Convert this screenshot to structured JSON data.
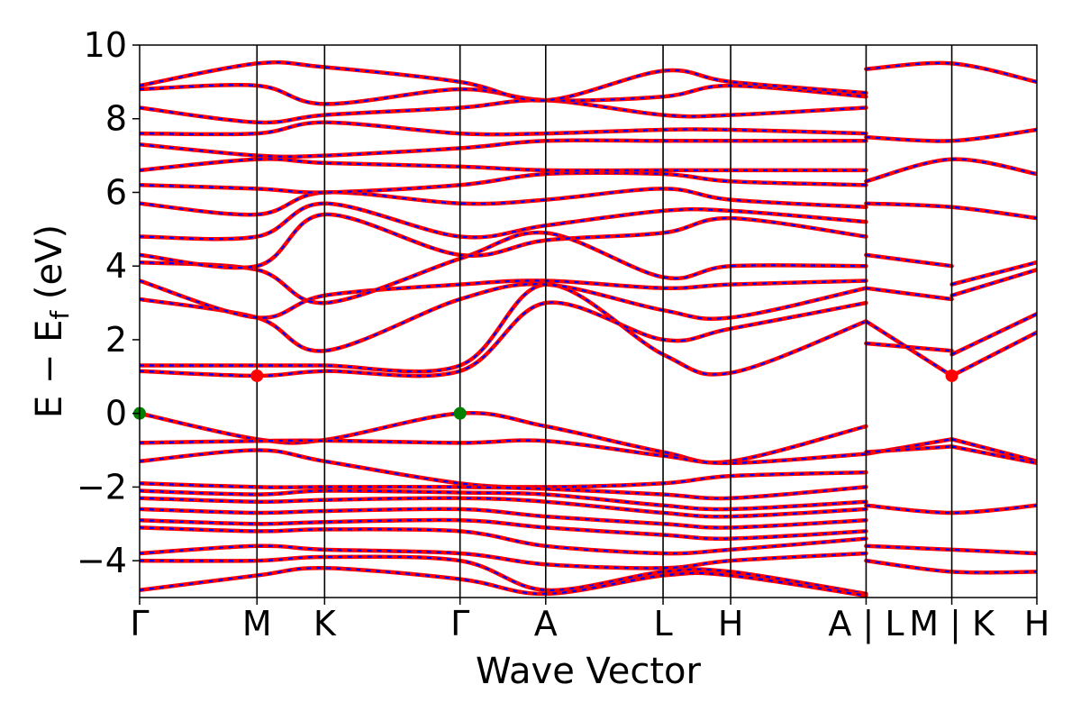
{
  "chart_data": {
    "type": "line",
    "xlabel": "Wave Vector",
    "ylabel_main": "E − E",
    "ylabel_sub": "f",
    "ylabel_unit": " (eV)",
    "ylim": [
      -5,
      10
    ],
    "yticks": [
      -4,
      -2,
      0,
      2,
      4,
      6,
      8,
      10
    ],
    "ytick_labels": [
      "−4",
      "−2",
      "0",
      "2",
      "4",
      "6",
      "8",
      "10"
    ],
    "kpath_labels": [
      "Γ",
      "M",
      "K",
      "Γ",
      "A",
      "L",
      "H",
      "A | L",
      "M | K",
      "H"
    ],
    "kpath_positions": [
      0,
      0.578,
      0.911,
      1.578,
      2.0,
      2.578,
      2.911,
      3.578,
      4.0,
      4.419
    ],
    "path_breaks": [
      3.578,
      4.0
    ],
    "grid": false,
    "band_colors": {
      "solid": "#ff0000",
      "dash": "#0000ff"
    },
    "markers": [
      {
        "name": "VBM",
        "x": 0,
        "y": 0,
        "color": "#008000"
      },
      {
        "name": "VBM",
        "x": 1.578,
        "y": 0,
        "color": "#008000"
      },
      {
        "name": "CBM",
        "x": 0.578,
        "y": 1.02,
        "color": "#ff0000"
      },
      {
        "name": "CBM",
        "x": 4.0,
        "y": 1.02,
        "color": "#ff0000"
      }
    ],
    "series": [
      {
        "x": [
          0,
          0.578,
          0.911,
          1.578,
          2.0,
          2.578,
          2.911,
          3.578
        ],
        "values": [
          0.0,
          -0.7,
          -0.72,
          0.0,
          -0.35,
          -1.05,
          -1.3,
          -0.35
        ]
      },
      {
        "x": [
          3.578,
          4.0
        ],
        "values": [
          -1.1,
          -0.7
        ]
      },
      {
        "x": [
          4.0,
          4.419
        ],
        "values": [
          -0.7,
          -1.3
        ]
      },
      {
        "x": [
          0,
          0.578,
          0.911,
          1.578,
          2.0,
          2.578,
          2.911,
          3.578
        ],
        "values": [
          -0.8,
          -0.75,
          -0.74,
          -0.8,
          -0.75,
          -1.15,
          -1.35,
          -1.1
        ]
      },
      {
        "x": [
          3.578,
          4.0
        ],
        "values": [
          -1.05,
          -0.9
        ]
      },
      {
        "x": [
          4.0,
          4.419
        ],
        "values": [
          -0.9,
          -1.35
        ]
      },
      {
        "x": [
          0,
          0.578,
          0.911,
          1.578,
          2.0,
          2.578,
          2.911,
          3.578
        ],
        "values": [
          -1.3,
          -1.0,
          -1.3,
          -1.9,
          -2.0,
          -1.9,
          -1.7,
          -1.6
        ]
      },
      {
        "x": [
          0,
          0.578,
          0.911,
          1.578,
          2.0,
          2.578,
          2.911,
          3.578
        ],
        "values": [
          -1.9,
          -2.0,
          -2.0,
          -2.0,
          -2.05,
          -2.2,
          -2.3,
          -2.0
        ]
      },
      {
        "x": [
          0,
          0.578,
          0.911,
          1.578,
          2.0,
          2.578,
          2.911,
          3.578
        ],
        "values": [
          -2.1,
          -2.2,
          -2.1,
          -2.15,
          -2.2,
          -2.5,
          -2.6,
          -2.4
        ]
      },
      {
        "x": [
          0,
          0.578,
          0.911,
          1.578,
          2.0,
          2.578,
          2.911,
          3.578
        ],
        "values": [
          -2.3,
          -2.4,
          -2.35,
          -2.3,
          -2.4,
          -2.7,
          -2.8,
          -2.6
        ]
      },
      {
        "x": [
          0,
          0.578,
          0.911,
          1.578,
          2.0,
          2.578,
          2.911,
          3.578
        ],
        "values": [
          -2.6,
          -2.7,
          -2.65,
          -2.6,
          -2.8,
          -3.0,
          -3.1,
          -2.9
        ]
      },
      {
        "x": [
          0,
          0.578,
          0.911,
          1.578,
          2.0,
          2.578,
          2.911,
          3.578
        ],
        "values": [
          -2.9,
          -3.0,
          -2.95,
          -2.9,
          -3.1,
          -3.3,
          -3.4,
          -3.2
        ]
      },
      {
        "x": [
          0,
          0.578,
          0.911,
          1.578,
          2.0,
          2.578,
          2.911,
          3.578
        ],
        "values": [
          -3.1,
          -3.2,
          -3.15,
          -3.2,
          -3.6,
          -3.8,
          -3.7,
          -3.4
        ]
      },
      {
        "x": [
          0,
          0.578,
          0.911,
          1.578,
          2.0,
          2.578,
          2.911,
          3.578
        ],
        "values": [
          -3.8,
          -3.6,
          -3.7,
          -3.8,
          -4.1,
          -4.2,
          -4.0,
          -3.8
        ]
      },
      {
        "x": [
          0,
          0.578,
          0.911,
          1.578,
          2.0,
          2.578,
          2.911,
          3.578
        ],
        "values": [
          -4.0,
          -4.0,
          -3.9,
          -4.0,
          -4.8,
          -4.3,
          -4.3,
          -4.9
        ]
      },
      {
        "x": [
          0,
          0.578,
          0.911,
          1.578,
          2.0,
          2.578,
          2.911,
          3.578
        ],
        "values": [
          -4.8,
          -4.4,
          -4.2,
          -4.5,
          -4.9,
          -4.4,
          -4.4,
          -4.95
        ]
      },
      {
        "x": [
          3.578,
          4.0,
          4.419
        ],
        "values": [
          -2.5,
          -2.7,
          -2.5
        ]
      },
      {
        "x": [
          3.578,
          4.0,
          4.419
        ],
        "values": [
          -3.6,
          -3.7,
          -3.8
        ]
      },
      {
        "x": [
          3.578,
          4.0,
          4.419
        ],
        "values": [
          -4.0,
          -4.3,
          -4.3
        ]
      },
      {
        "x": [
          0,
          0.578,
          0.911,
          1.578,
          2.0,
          2.578,
          2.911,
          3.578
        ],
        "values": [
          1.3,
          1.3,
          1.3,
          1.3,
          3.5,
          1.6,
          1.1,
          2.5
        ]
      },
      {
        "x": [
          0,
          0.578,
          0.911,
          1.578,
          2.0,
          2.578,
          2.911,
          3.578
        ],
        "values": [
          1.15,
          1.02,
          1.15,
          1.15,
          3.0,
          2.0,
          2.3,
          3.0
        ]
      },
      {
        "x": [
          3.578,
          4.0
        ],
        "values": [
          2.5,
          1.02
        ]
      },
      {
        "x": [
          4.0,
          4.419
        ],
        "values": [
          1.02,
          2.2
        ]
      },
      {
        "x": [
          3.578,
          4.0
        ],
        "values": [
          1.9,
          1.7
        ]
      },
      {
        "x": [
          4.0,
          4.419
        ],
        "values": [
          1.6,
          2.7
        ]
      },
      {
        "x": [
          0,
          0.578,
          0.911,
          1.578,
          2.0,
          2.578,
          2.911,
          3.578
        ],
        "values": [
          3.1,
          2.6,
          1.7,
          3.1,
          3.5,
          2.8,
          2.6,
          3.4
        ]
      },
      {
        "x": [
          0,
          0.578,
          0.911,
          1.578,
          2.0,
          2.578,
          2.911,
          3.578
        ],
        "values": [
          3.6,
          2.6,
          3.2,
          3.5,
          3.6,
          3.4,
          3.5,
          3.6
        ]
      },
      {
        "x": [
          0,
          0.578,
          0.911,
          1.578,
          2.0,
          2.578,
          2.911,
          3.578
        ],
        "values": [
          4.1,
          3.9,
          3.0,
          4.2,
          4.9,
          3.7,
          4.0,
          4.0
        ]
      },
      {
        "x": [
          0,
          0.578,
          0.911,
          1.578,
          2.0,
          2.578,
          2.911,
          3.578
        ],
        "values": [
          4.3,
          4.0,
          5.4,
          4.3,
          4.7,
          4.9,
          5.3,
          4.8
        ]
      },
      {
        "x": [
          0,
          0.578,
          0.911,
          1.578,
          2.0,
          2.578,
          2.911,
          3.578
        ],
        "values": [
          4.8,
          4.8,
          5.7,
          4.8,
          5.1,
          5.5,
          5.5,
          5.2
        ]
      },
      {
        "x": [
          3.578,
          4.0
        ],
        "values": [
          3.4,
          3.1
        ]
      },
      {
        "x": [
          4.0,
          4.419
        ],
        "values": [
          3.2,
          3.9
        ]
      },
      {
        "x": [
          3.578,
          4.0
        ],
        "values": [
          4.3,
          4.0
        ]
      },
      {
        "x": [
          4.0,
          4.419
        ],
        "values": [
          3.5,
          4.1
        ]
      },
      {
        "x": [
          0,
          0.578,
          0.911,
          1.578,
          2.0,
          2.578,
          2.911,
          3.578
        ],
        "values": [
          5.7,
          5.4,
          6.0,
          5.7,
          5.8,
          6.1,
          5.8,
          5.6
        ]
      },
      {
        "x": [
          0,
          0.578,
          0.911,
          1.578,
          2.0,
          2.578,
          2.911,
          3.578
        ],
        "values": [
          6.2,
          6.1,
          6.0,
          6.2,
          6.5,
          6.5,
          6.3,
          6.2
        ]
      },
      {
        "x": [
          0,
          0.578,
          0.911,
          1.578,
          2.0,
          2.578,
          2.911,
          3.578
        ],
        "values": [
          6.6,
          6.9,
          6.8,
          6.7,
          6.6,
          6.6,
          6.6,
          6.6
        ]
      },
      {
        "x": [
          3.578,
          4.0,
          4.419
        ],
        "values": [
          5.7,
          5.6,
          5.3
        ]
      },
      {
        "x": [
          3.578,
          4.0,
          4.419
        ],
        "values": [
          6.3,
          6.9,
          6.5
        ]
      },
      {
        "x": [
          0,
          0.578,
          0.911,
          1.578,
          2.0,
          2.578,
          2.911,
          3.578
        ],
        "values": [
          7.3,
          7.0,
          7.0,
          7.2,
          7.4,
          7.4,
          7.4,
          7.4
        ]
      },
      {
        "x": [
          0,
          0.578,
          0.911,
          1.578,
          2.0,
          2.578,
          2.911,
          3.578
        ],
        "values": [
          7.6,
          7.6,
          7.9,
          7.6,
          7.6,
          7.7,
          7.7,
          7.6
        ]
      },
      {
        "x": [
          0,
          0.578,
          0.911,
          1.578,
          2.0,
          2.578,
          2.911,
          3.578
        ],
        "values": [
          8.3,
          7.9,
          8.1,
          8.3,
          8.5,
          8.1,
          8.1,
          8.3
        ]
      },
      {
        "x": [
          0,
          0.578,
          0.911,
          1.578,
          2.0,
          2.578,
          2.911,
          3.578
        ],
        "values": [
          8.8,
          8.9,
          8.4,
          8.8,
          8.5,
          8.6,
          8.9,
          8.6
        ]
      },
      {
        "x": [
          0,
          0.578,
          0.911,
          1.578,
          2.0,
          2.578,
          2.911,
          3.578
        ],
        "values": [
          8.9,
          9.5,
          9.4,
          9.0,
          8.5,
          9.3,
          9.0,
          8.7
        ]
      },
      {
        "x": [
          3.578,
          4.0,
          4.419
        ],
        "values": [
          7.5,
          7.4,
          7.7
        ]
      },
      {
        "x": [
          3.578,
          4.0,
          4.419
        ],
        "values": [
          9.35,
          9.5,
          9.0
        ]
      }
    ]
  }
}
